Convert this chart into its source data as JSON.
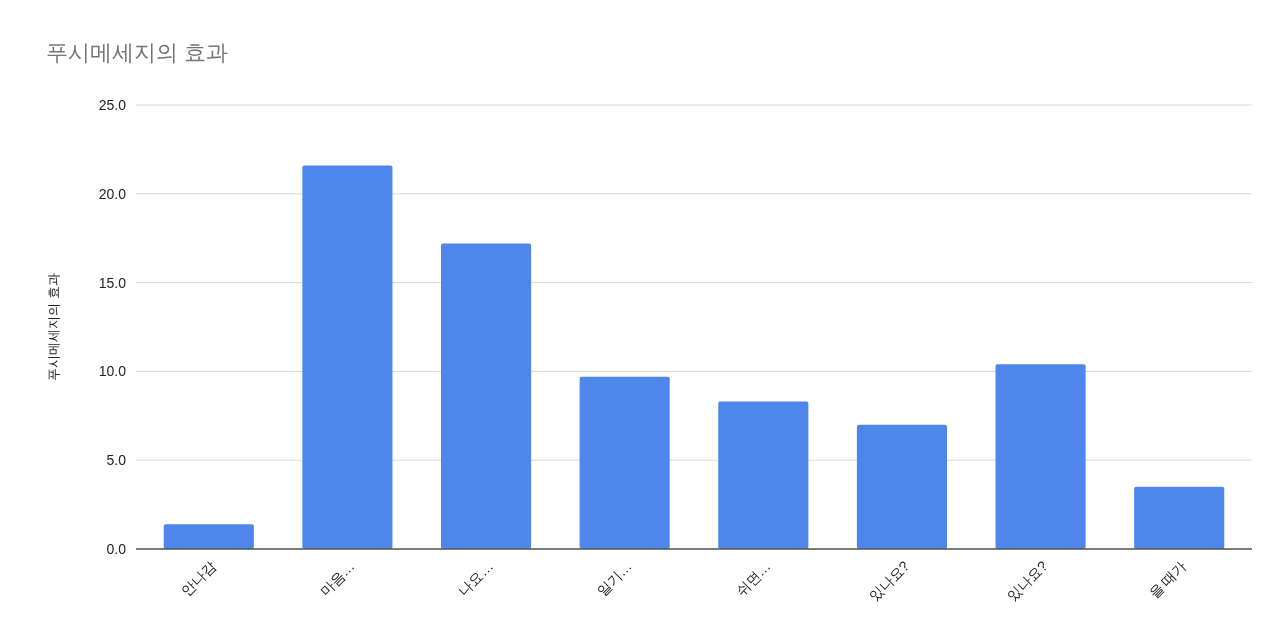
{
  "chart_data": {
    "type": "bar",
    "title": "푸시메세지의 효과",
    "ylabel": "푸시메세지의 효과",
    "categories": [
      "안나감",
      "마음…",
      "나요…",
      "일기…",
      "쉬면…",
      "있나요?",
      "있나요?",
      "을 때가"
    ],
    "values": [
      1.4,
      21.6,
      17.2,
      9.7,
      8.3,
      7.0,
      10.4,
      3.5
    ],
    "color": "#4f86ec",
    "ylim": [
      0,
      25
    ],
    "yticks": [
      {
        "value": 0,
        "label": "0.0"
      },
      {
        "value": 5,
        "label": "5.0"
      },
      {
        "value": 10,
        "label": "10.0"
      },
      {
        "value": 15,
        "label": "15.0"
      },
      {
        "value": 20,
        "label": "20.0"
      },
      {
        "value": 25,
        "label": "25.0"
      }
    ],
    "grid": "y"
  }
}
